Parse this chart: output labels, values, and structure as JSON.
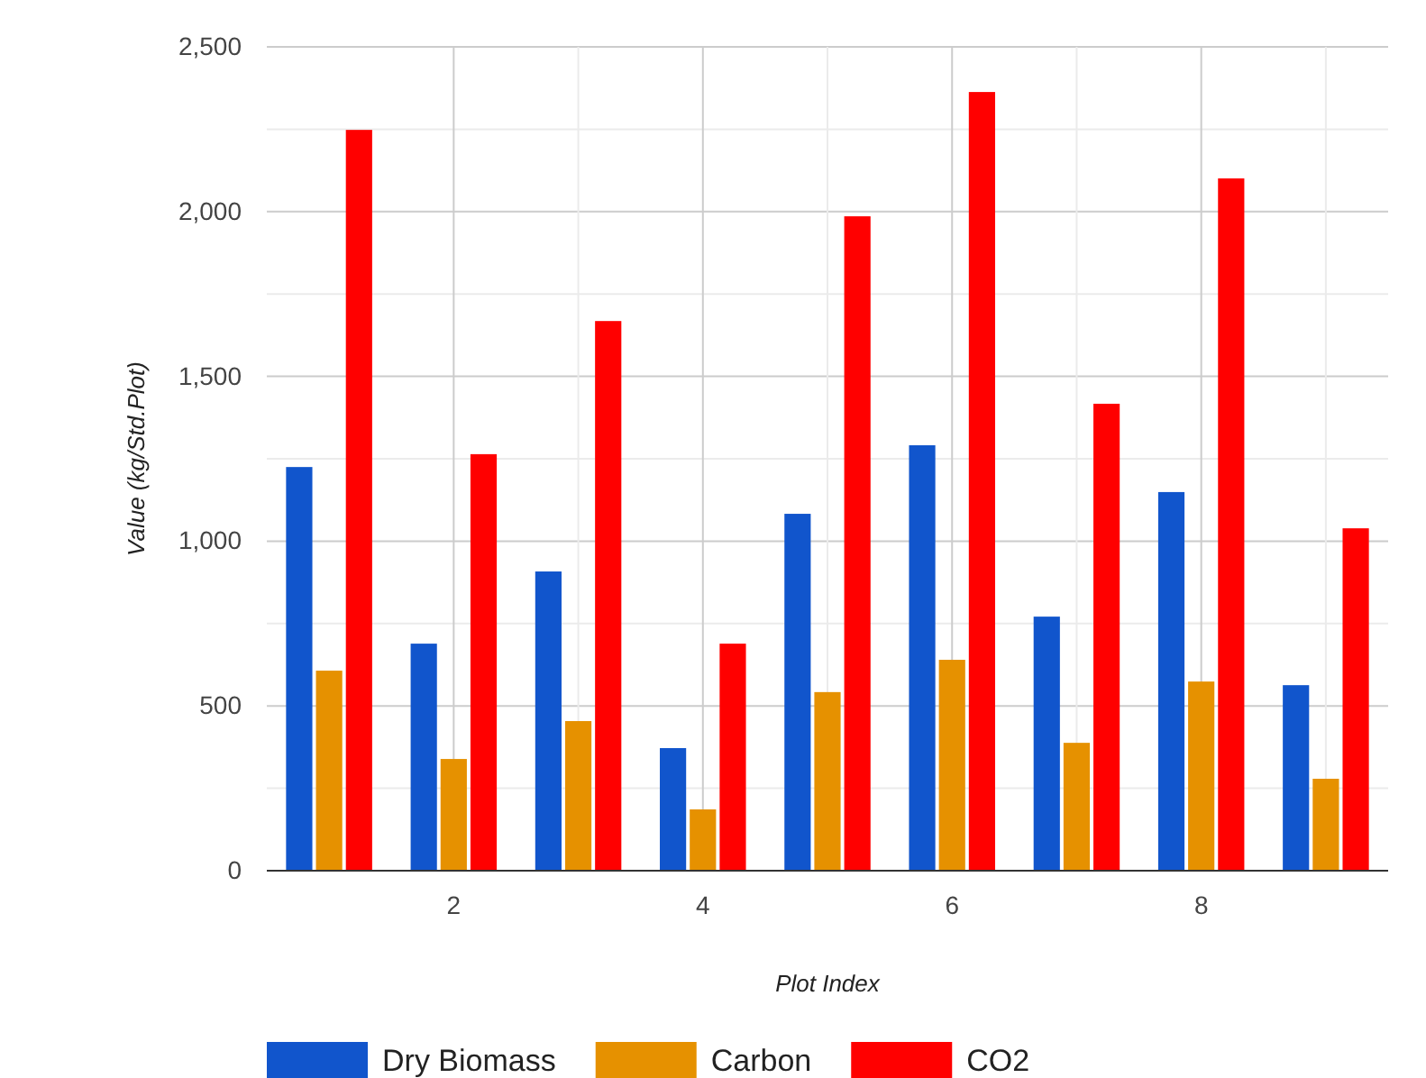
{
  "chart_data": {
    "type": "bar",
    "xlabel": "Plot Index",
    "ylabel": "Value (kg/Std.Plot)",
    "x": [
      1,
      2,
      3,
      4,
      5,
      6,
      7,
      8,
      9
    ],
    "series": [
      {
        "name": "Dry Biomass",
        "color": "#1155cc",
        "values": [
          1225,
          689,
          908,
          372,
          1083,
          1291,
          771,
          1149,
          563
        ]
      },
      {
        "name": "Carbon",
        "color": "#e69100",
        "values": [
          607,
          339,
          454,
          186,
          542,
          640,
          388,
          574,
          279
        ]
      },
      {
        "name": "CO2",
        "color": "#ff0000",
        "values": [
          2248,
          1264,
          1668,
          689,
          1986,
          2363,
          1417,
          2101,
          1039
        ]
      }
    ],
    "xlim": [
      0.5,
      9.5
    ],
    "xticks": [
      {
        "value": 3,
        "label": null
      },
      2,
      4,
      6,
      8,
      {
        "value": 5,
        "label": null
      },
      {
        "value": 7,
        "label": null
      },
      {
        "value": 9,
        "label": null
      }
    ],
    "ylim": [
      0,
      2500
    ],
    "yticks": [
      0,
      {
        "value": 250,
        "label": null
      },
      500,
      {
        "value": 750,
        "label": null
      },
      {
        "value": 1000,
        "label": "1,000"
      },
      {
        "value": 1250,
        "label": null
      },
      {
        "value": 1500,
        "label": "1,500"
      },
      {
        "value": 1750,
        "label": null
      },
      {
        "value": 2000,
        "label": "2,000"
      },
      {
        "value": 2250,
        "label": null
      },
      {
        "value": 2500,
        "label": "2,500"
      }
    ],
    "grid": true,
    "legend": "bottom left"
  }
}
